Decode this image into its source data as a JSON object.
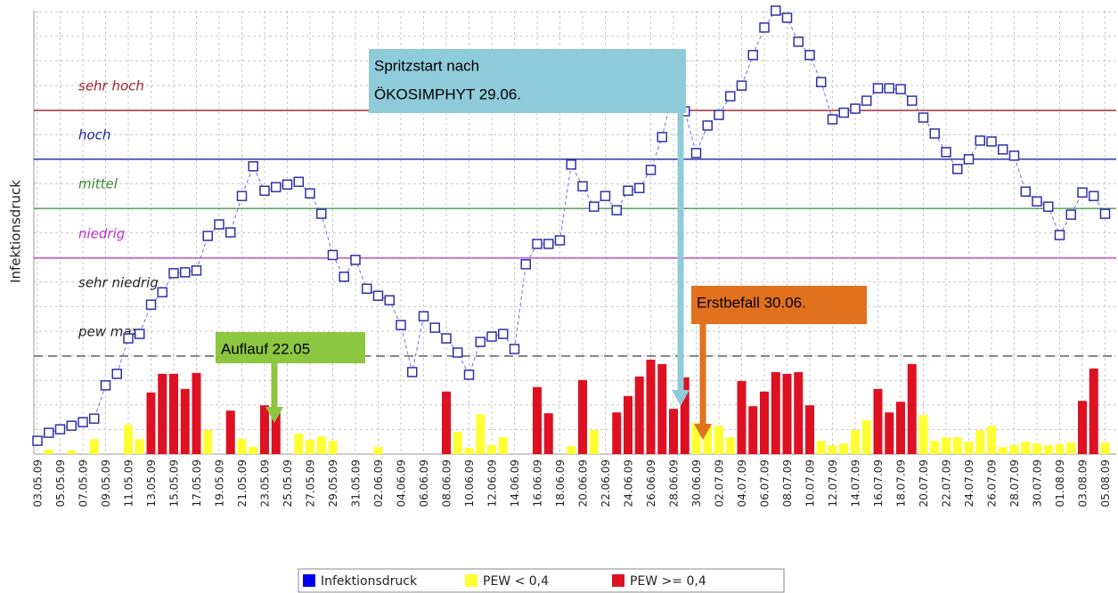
{
  "chart_data": {
    "type": "combo",
    "ylabel": "Infektionsdruck",
    "ylim": [
      0,
      100
    ],
    "categories": [
      "03.05.09",
      null,
      "05.05.09",
      null,
      "07.05.09",
      null,
      "09.05.09",
      null,
      "11.05.09",
      null,
      "13.05.09",
      null,
      "15.05.09",
      null,
      "17.05.09",
      null,
      "19.05.09",
      null,
      "21.05.09",
      null,
      "23.05.09",
      null,
      "25.05.09",
      null,
      "27.05.09",
      null,
      "29.05.09",
      null,
      "31.05.09",
      null,
      "02.06.09",
      null,
      "04.06.09",
      null,
      "06.06.09",
      null,
      "08.06.09",
      null,
      "10.06.09",
      null,
      "12.06.09",
      null,
      "14.06.09",
      null,
      "16.06.09",
      null,
      "18.06.09",
      null,
      "20.06.09",
      null,
      "22.06.09",
      null,
      "24.06.09",
      null,
      "26.06.09",
      null,
      "28.06.09",
      null,
      "30.06.09",
      null,
      "02.07.09",
      null,
      "04.07.09",
      null,
      "06.07.09",
      null,
      "08.07.09",
      null,
      "10.07.09",
      null,
      "12.07.09",
      null,
      "14.07.09",
      null,
      "16.07.09",
      null,
      "18.07.09",
      null,
      "20.07.09",
      null,
      "22.07.09",
      null,
      "24.07.09",
      null,
      "26.07.09",
      null,
      "28.07.09",
      null,
      "30.07.09",
      null,
      "01.08.09",
      null,
      "03.08.09",
      null,
      "05.08.09"
    ],
    "series": [
      {
        "name": "Infektionsdruck",
        "type": "line",
        "color": "#0000ee",
        "values": [
          3.0,
          4.8,
          5.6,
          6.4,
          7.2,
          8.0,
          15.5,
          18.1,
          26.1,
          27.1,
          33.7,
          36.5,
          40.8,
          41.0,
          41.4,
          49.2,
          51.8,
          50.0,
          58.2,
          64.9,
          59.4,
          60.2,
          60.8,
          61.4,
          58.8,
          54.2,
          44.9,
          40.0,
          43.8,
          37.3,
          35.7,
          34.7,
          29.1,
          18.5,
          31.1,
          28.5,
          26.1,
          22.9,
          17.9,
          25.3,
          26.5,
          27.1,
          23.7,
          42.8,
          47.4,
          47.4,
          48.2,
          65.3,
          60.4,
          55.8,
          58.2,
          55.0,
          59.4,
          60.0,
          64.1,
          71.5,
          82.1,
          77.3,
          67.9,
          74.1,
          76.5,
          80.7,
          83.1,
          90.0,
          96.2,
          100.0,
          98.4,
          93.0,
          90.0,
          83.9,
          75.5,
          77.0,
          77.9,
          79.7,
          82.5,
          82.5,
          82.3,
          79.7,
          75.9,
          72.3,
          68.1,
          64.3,
          66.5,
          70.7,
          70.5,
          68.7,
          67.3,
          59.2,
          57.0,
          55.8,
          49.4,
          54.0,
          59.0,
          58.2,
          54.2
        ]
      },
      {
        "name": "PEW < 0,4",
        "type": "bar",
        "color": "#ffff33",
        "values": [
          null,
          1.0,
          null,
          0.8,
          null,
          3.4,
          null,
          null,
          6.6,
          3.4,
          null,
          null,
          null,
          null,
          null,
          5.4,
          null,
          null,
          3.4,
          1.6,
          null,
          null,
          null,
          4.6,
          3.2,
          4.0,
          3.0,
          null,
          null,
          null,
          1.6,
          null,
          null,
          null,
          null,
          null,
          null,
          5.0,
          1.4,
          9.0,
          2.0,
          3.8,
          null,
          null,
          null,
          null,
          null,
          1.8,
          null,
          5.4,
          null,
          null,
          null,
          null,
          null,
          null,
          null,
          null,
          7.0,
          6.6,
          6.4,
          3.8,
          null,
          null,
          null,
          null,
          null,
          null,
          null,
          3.0,
          2.0,
          2.4,
          5.4,
          7.6,
          null,
          null,
          null,
          null,
          8.8,
          3.0,
          3.8,
          3.8,
          2.8,
          5.4,
          6.4,
          1.6,
          2.0,
          2.8,
          2.4,
          2.0,
          2.2,
          2.6,
          null,
          null,
          2.6
        ]
      },
      {
        "name": "PEW >= 0,4",
        "type": "bar",
        "color": "#dd1122",
        "values": [
          null,
          null,
          null,
          null,
          null,
          null,
          null,
          null,
          null,
          null,
          13.9,
          18.1,
          18.1,
          14.7,
          18.3,
          null,
          null,
          9.8,
          null,
          null,
          11.0,
          10.6,
          null,
          null,
          null,
          null,
          null,
          null,
          null,
          null,
          null,
          null,
          null,
          null,
          null,
          null,
          14.1,
          null,
          null,
          null,
          null,
          null,
          null,
          null,
          15.1,
          9.2,
          null,
          null,
          16.7,
          null,
          null,
          9.4,
          13.1,
          17.5,
          21.3,
          20.3,
          10.2,
          17.3,
          null,
          null,
          null,
          null,
          16.5,
          10.8,
          14.1,
          18.5,
          18.1,
          18.5,
          11.0,
          null,
          null,
          null,
          null,
          null,
          14.7,
          9.4,
          11.8,
          20.3,
          null,
          null,
          null,
          null,
          null,
          null,
          null,
          null,
          null,
          null,
          null,
          null,
          null,
          null,
          12.0,
          19.3,
          null
        ]
      }
    ],
    "bands": [
      {
        "name": "sehr hoch",
        "color": "#a02030",
        "line": 77.5
      },
      {
        "name": "hoch",
        "color": "#2020a0",
        "line": 66.5
      },
      {
        "name": "mittel",
        "color": "#3a8a3a",
        "line": 55.4
      },
      {
        "name": "niedrig",
        "color": "#c030c0",
        "line": 44.2
      },
      {
        "name": "sehr niedrig",
        "color": "#222222",
        "line": null
      },
      {
        "name": "pew max",
        "color": "#222222",
        "line": 22.1,
        "dashed": true
      }
    ],
    "annotations": [
      {
        "lines": [
          "Spritzstart nach",
          "ÖKOSIMPHYT 29.06."
        ],
        "color": "#8fcbd8"
      },
      {
        "lines": [
          "Erstbefall 30.06."
        ],
        "color": "#e2711d"
      },
      {
        "lines": [
          "Auflauf 22.05"
        ],
        "color": "#8dc63f"
      }
    ],
    "grid": true
  }
}
